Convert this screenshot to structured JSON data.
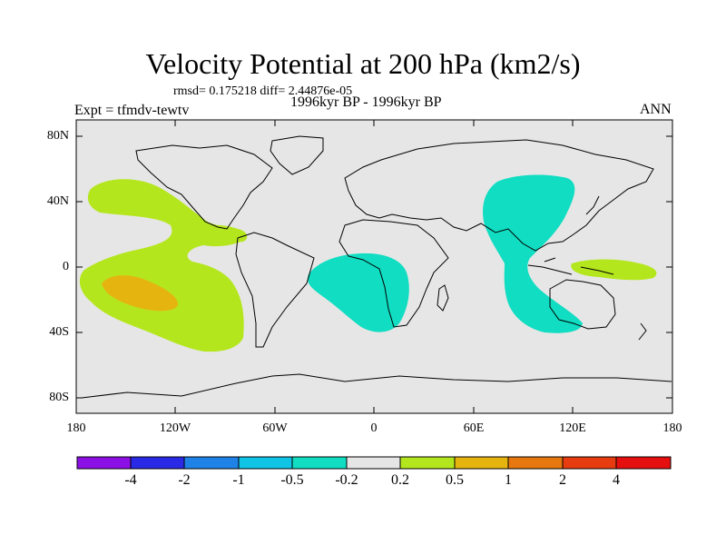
{
  "map": {
    "title": "Velocity Potential at 200 hPa (km2/s)",
    "stats_line": "rmsd= 0.175218 diff= 2.44876e-05",
    "experiment": "Expt = tfmdv-tewtv",
    "period": "1996kyr BP - 1996kyr BP",
    "season": "ANN",
    "lat_labels": [
      "80N",
      "40N",
      "0",
      "40S",
      "80S"
    ],
    "lon_labels": [
      "180",
      "120W",
      "60W",
      "0",
      "60E",
      "120E",
      "180"
    ]
  },
  "colorbar": {
    "colors": [
      "#8c10e6",
      "#2a2ae6",
      "#1f82e6",
      "#10c4e6",
      "#10ddc2",
      "#e6e6e6",
      "#b4e61e",
      "#e6b40f",
      "#e6780f",
      "#e63c0f",
      "#e60f0f"
    ],
    "labels": [
      "-4",
      "-2",
      "-1",
      "-0.5",
      "-0.2",
      "0.2",
      "0.5",
      "1",
      "2",
      "4"
    ]
  },
  "colors": {
    "background": "#e6e6e6",
    "positive_contour": "#b4e61e",
    "strong_positive": "#e6b40f",
    "negative_contour": "#10ddc2"
  }
}
